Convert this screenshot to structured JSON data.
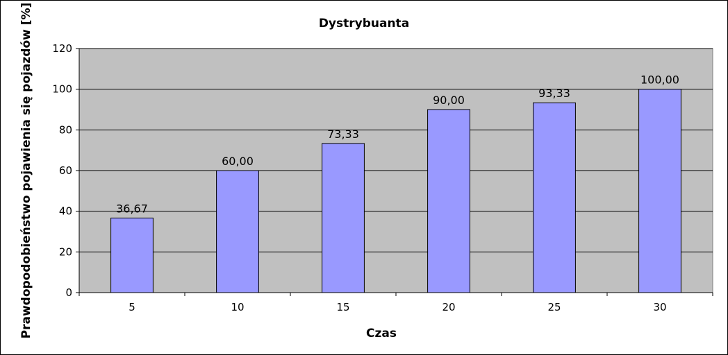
{
  "chart_data": {
    "type": "bar",
    "title": "Dystrybuanta",
    "xlabel": "Czas",
    "ylabel": "Prawdopodobieństwo pojawienia się pojazdów  [%]",
    "categories": [
      "5",
      "10",
      "15",
      "20",
      "25",
      "30"
    ],
    "values": [
      36.67,
      60.0,
      73.33,
      90.0,
      93.33,
      100.0
    ],
    "data_labels": [
      "36,67",
      "60,00",
      "73,33",
      "90,00",
      "93,33",
      "100,00"
    ],
    "ylim": [
      0,
      120
    ],
    "yticks": [
      "0",
      "20",
      "40",
      "60",
      "80",
      "100",
      "120"
    ],
    "grid": true,
    "legend": "none",
    "colors": {
      "bar_fill": "#9999ff",
      "bar_stroke": "#000000",
      "plot_bg": "#c0c0c0",
      "gridline": "#000000"
    }
  }
}
